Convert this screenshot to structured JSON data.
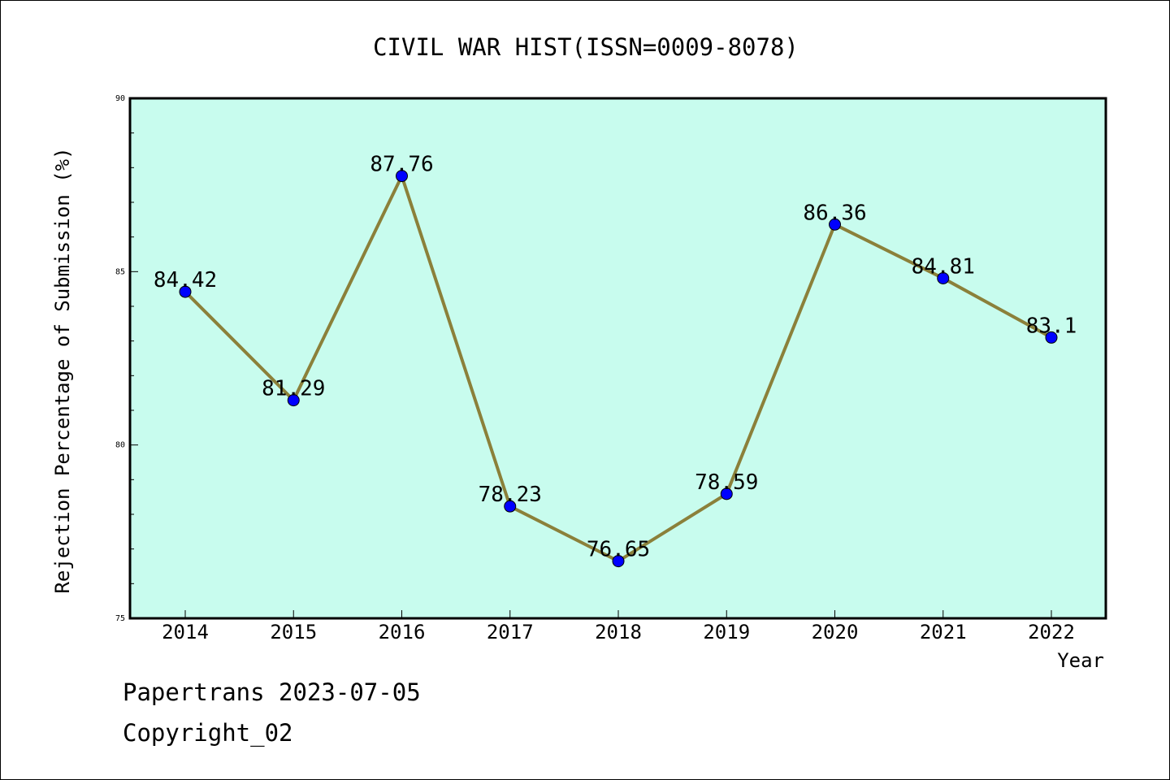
{
  "chart_data": {
    "type": "line",
    "title": "CIVIL WAR HIST(ISSN=0009-8078)",
    "xlabel": "Year",
    "ylabel": "Rejection Percentage of Submission (%)",
    "categories": [
      "2014",
      "2015",
      "2016",
      "2017",
      "2018",
      "2019",
      "2020",
      "2021",
      "2022"
    ],
    "series": [
      {
        "values": [
          84.42,
          81.29,
          87.76,
          78.23,
          76.65,
          78.59,
          86.36,
          84.81,
          83.1
        ],
        "labels": [
          "84.42",
          "81.29",
          "87.76",
          "78.23",
          "76.65",
          "78.59",
          "86.36",
          "84.81",
          "83.1"
        ]
      }
    ],
    "ylim": [
      75,
      90
    ],
    "yticks": [
      "75",
      "80",
      "85",
      "90"
    ],
    "grid": false,
    "colors": {
      "plot_background": "#c8fcee",
      "line": "#8b803a",
      "marker": "#0000ff"
    }
  },
  "footer": {
    "line1": "Papertrans 2023-07-05",
    "line2": "Copyright_02"
  }
}
